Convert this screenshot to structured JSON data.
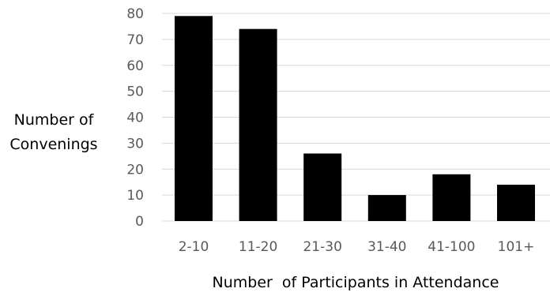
{
  "chart_data": {
    "type": "bar",
    "categories": [
      "2-10",
      "11-20",
      "21-30",
      "31-40",
      "41-100",
      "101+"
    ],
    "values": [
      79,
      74,
      26,
      10,
      18,
      14
    ],
    "title": "",
    "xlabel": "Number  of Participants in Attendance",
    "ylabel_lines": [
      "Number of",
      "Convenings"
    ],
    "ylim": [
      0,
      80
    ],
    "yticks": [
      0,
      10,
      20,
      30,
      40,
      50,
      60,
      70,
      80
    ],
    "grid": true,
    "legend": "none",
    "bar_color": "#000000",
    "grid_color": "#d9d9d9",
    "tick_label_color": "#595959"
  }
}
